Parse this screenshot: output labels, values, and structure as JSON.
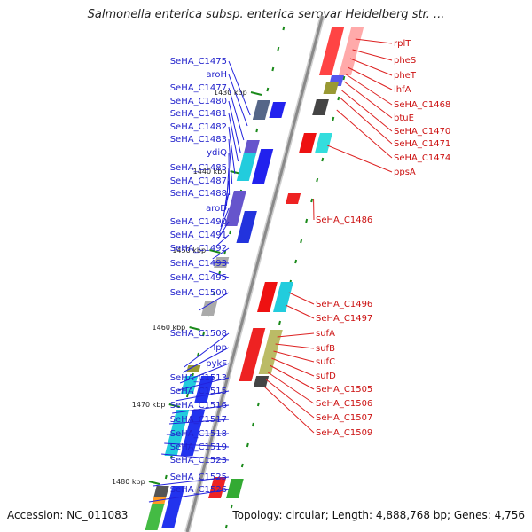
{
  "title": "Salmonella enterica subsp. enterica serovar Heidelberg str. ...",
  "footer": {
    "accession": "Accession: NC_011083",
    "summary": "Topology: circular; Length: 4,888,768 bp; Genes: 4,756"
  },
  "kbp_marks": [
    "1430 kbp",
    "1440 kbp",
    "1450 kbp",
    "1460 kbp",
    "1470 kbp",
    "1480 kbp"
  ],
  "left_genes": [
    "SeHA_C1475",
    "aroH",
    "SeHA_C1477",
    "SeHA_C1480",
    "SeHA_C1481",
    "SeHA_C1482",
    "SeHA_C1483",
    "ydiQ",
    "SeHA_C1485",
    "SeHA_C1487",
    "SeHA_C1488",
    "aroD",
    "SeHA_C1490",
    "SeHA_C1491",
    "SeHA_C1492",
    "SeHA_C1493",
    "SeHA_C1495",
    "SeHA_C1500",
    "SeHA_C1508",
    "lpp",
    "pykF",
    "SeHA_C1513",
    "SeHA_C1515",
    "SeHA_C1516",
    "SeHA_C1517",
    "SeHA_C1518",
    "SeHA_C1519",
    "SeHA_C1523",
    "SeHA_C1525",
    "SeHA_C1526"
  ],
  "right_genes": [
    "rplT",
    "pheS",
    "pheT",
    "ihfA",
    "SeHA_C1468",
    "btuE",
    "SeHA_C1470",
    "SeHA_C1471",
    "SeHA_C1474",
    "ppsA",
    "SeHA_C1486",
    "SeHA_C1496",
    "SeHA_C1497",
    "sufA",
    "sufB",
    "sufC",
    "sufD",
    "SeHA_C1505",
    "SeHA_C1506",
    "SeHA_C1507",
    "SeHA_C1509"
  ],
  "colors": {
    "left_label": "#2222cc",
    "right_label": "#cc1111",
    "backbone": "#8a8a8a",
    "tick": "#1a8a1a"
  }
}
